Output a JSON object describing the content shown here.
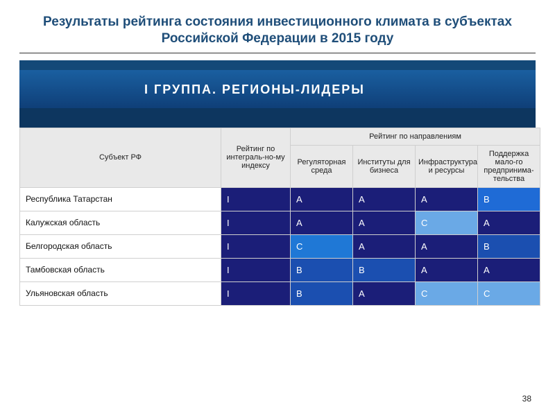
{
  "title": "Результаты рейтинга состояния инвестиционного климата в субъектах Российской Федерации в 2015 году",
  "banner": "I ГРУППА. РЕГИОНЫ-ЛИДЕРЫ",
  "header": {
    "subject": "Субъект РФ",
    "integral": "Рейтинг по интеграль-но-му индексу",
    "directions_group": "Рейтинг по направлениям",
    "dir1": "Регуляторная среда",
    "dir2": "Институты для бизнеса",
    "dir3": "Инфраструктура и ресурсы",
    "dir4": "Поддержка мало-го предпринима-тельства"
  },
  "palette": {
    "I_dark": "#1b1e78",
    "A_dark": "#1b1e78",
    "B_blue": "#1f6bd6",
    "B_mid": "#1b4fb0",
    "C_blue": "#1f78d6",
    "C_light": "#6aa9e6",
    "header_bg": "#e9e9e9"
  },
  "rows": [
    {
      "subject": "Республика Татарстан",
      "cells": [
        {
          "v": "I",
          "c": "#1b1e78"
        },
        {
          "v": "A",
          "c": "#1b1e78"
        },
        {
          "v": "A",
          "c": "#1b1e78"
        },
        {
          "v": "A",
          "c": "#1b1e78"
        },
        {
          "v": "B",
          "c": "#1f6bd6"
        }
      ]
    },
    {
      "subject": "Калужская область",
      "cells": [
        {
          "v": "I",
          "c": "#1b1e78"
        },
        {
          "v": "A",
          "c": "#1b1e78"
        },
        {
          "v": "A",
          "c": "#1b1e78"
        },
        {
          "v": "C",
          "c": "#6aa9e6"
        },
        {
          "v": "A",
          "c": "#1b1e78"
        }
      ]
    },
    {
      "subject": "Белгородская область",
      "cells": [
        {
          "v": "I",
          "c": "#1b1e78"
        },
        {
          "v": "C",
          "c": "#1f78d6"
        },
        {
          "v": "A",
          "c": "#1b1e78"
        },
        {
          "v": "A",
          "c": "#1b1e78"
        },
        {
          "v": "B",
          "c": "#1b4fb0"
        }
      ]
    },
    {
      "subject": "Тамбовская область",
      "cells": [
        {
          "v": "I",
          "c": "#1b1e78"
        },
        {
          "v": "B",
          "c": "#1b4fb0"
        },
        {
          "v": "B",
          "c": "#1b4fb0"
        },
        {
          "v": "A",
          "c": "#1b1e78"
        },
        {
          "v": "A",
          "c": "#1b1e78"
        }
      ]
    },
    {
      "subject": "Ульяновская область",
      "cells": [
        {
          "v": "I",
          "c": "#1b1e78"
        },
        {
          "v": "B",
          "c": "#1b4fb0"
        },
        {
          "v": "A",
          "c": "#1b1e78"
        },
        {
          "v": "C",
          "c": "#6aa9e6"
        },
        {
          "v": "C",
          "c": "#6aa9e6"
        }
      ]
    }
  ],
  "page_number": "38"
}
